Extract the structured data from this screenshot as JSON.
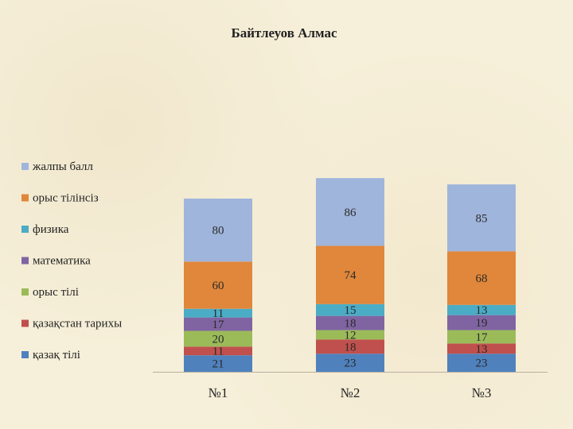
{
  "chart_data": {
    "type": "bar",
    "stacked": true,
    "title": "Байтлеуов Алмас",
    "categories": [
      "№1",
      "№2",
      "№3"
    ],
    "series": [
      {
        "name": "қазақ тілі",
        "color": "#4f81bd",
        "values": [
          21,
          23,
          23
        ]
      },
      {
        "name": "қазақстан тарихы",
        "color": "#c0504d",
        "values": [
          11,
          18,
          13
        ]
      },
      {
        "name": "орыс тілі",
        "color": "#9bbb59",
        "values": [
          20,
          12,
          17
        ]
      },
      {
        "name": "математика",
        "color": "#8064a2",
        "values": [
          17,
          18,
          19
        ]
      },
      {
        "name": "физика",
        "color": "#4bacc6",
        "values": [
          11,
          15,
          13
        ]
      },
      {
        "name": "орыс тілінсіз",
        "color": "#e0873b",
        "values": [
          60,
          74,
          68
        ]
      },
      {
        "name": "жалпы балл",
        "color": "#9fb5db",
        "values": [
          80,
          86,
          85
        ]
      }
    ],
    "ylim": [
      0,
      335
    ],
    "grid": false,
    "legend": "left"
  }
}
